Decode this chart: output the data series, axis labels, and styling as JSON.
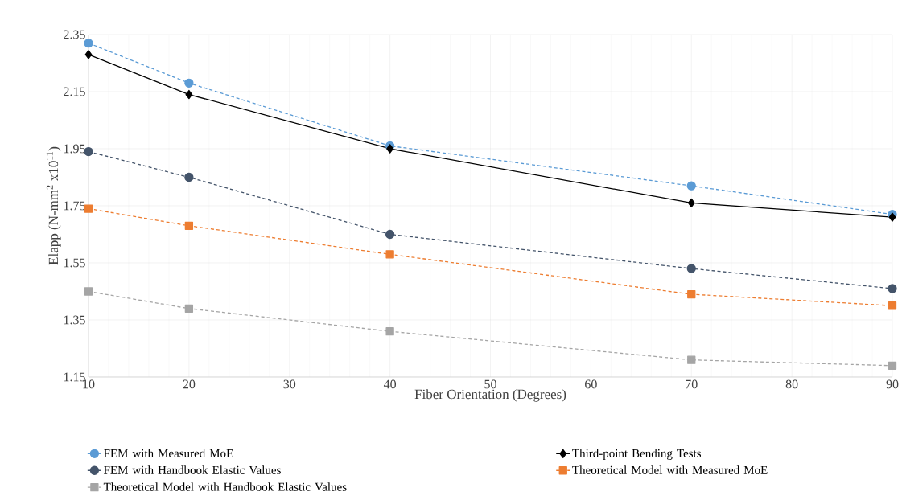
{
  "chart_data": {
    "type": "line",
    "xlabel": "Fiber Orientation (Degrees)",
    "ylabel": "Elapp (N-mm$^{2}$ x10$^{11}$)",
    "x": [
      10,
      20,
      40,
      70,
      90
    ],
    "series": [
      {
        "name": "FEM with Measured MoE",
        "color": "#5b9bd5",
        "marker": "circle",
        "line_style": "dashed",
        "values": [
          2.32,
          2.18,
          1.96,
          1.82,
          1.72
        ]
      },
      {
        "name": "Third-point Bending Tests",
        "color": "#000000",
        "marker": "diamond",
        "line_style": "solid",
        "values": [
          2.28,
          2.14,
          1.95,
          1.76,
          1.71
        ]
      },
      {
        "name": "FEM with Handbook Elastic Values",
        "color": "#44546a",
        "marker": "circle",
        "line_style": "dashed",
        "values": [
          1.94,
          1.85,
          1.65,
          1.53,
          1.46
        ]
      },
      {
        "name": "Theoretical Model with Measured MoE",
        "color": "#ed7d31",
        "marker": "square",
        "line_style": "dashed",
        "values": [
          1.74,
          1.68,
          1.58,
          1.44,
          1.4
        ]
      },
      {
        "name": "Theoretical Model with Handbook Elastic Values",
        "color": "#a5a5a5",
        "marker": "square",
        "line_style": "dashed",
        "values": [
          1.45,
          1.39,
          1.31,
          1.21,
          1.19
        ]
      }
    ],
    "xlim": [
      10,
      90
    ],
    "xticks": [
      10,
      20,
      30,
      40,
      50,
      60,
      70,
      80,
      90
    ],
    "ylim": [
      1.15,
      2.35
    ],
    "yticks": [
      1.15,
      1.35,
      1.55,
      1.75,
      1.95,
      2.15,
      2.35
    ],
    "grid": true,
    "legend": "bottom"
  }
}
